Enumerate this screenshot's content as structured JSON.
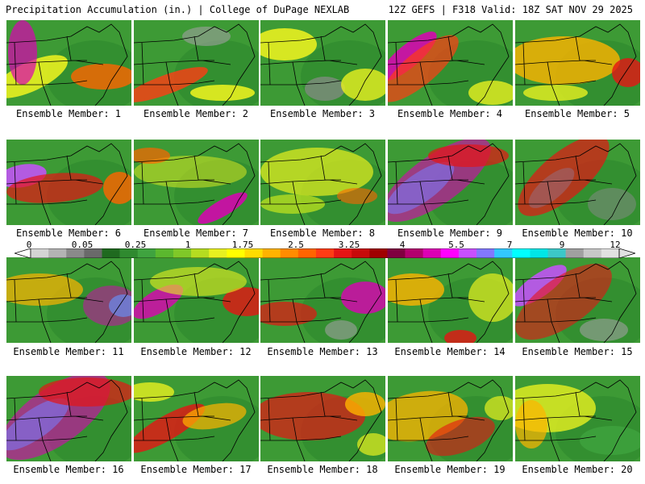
{
  "header": {
    "title": "Precipitation Accumulation (in.) | College of DuPage NEXLAB",
    "valid": "12Z GEFS | F318 Valid: 18Z SAT NOV 29 2025"
  },
  "colorbar": {
    "labels": [
      "0",
      "0.05",
      "0.25",
      "1",
      "1.75",
      "2.5",
      "3.25",
      "4",
      "5.5",
      "7",
      "9",
      "12"
    ],
    "colors": [
      "#d4d4d4",
      "#b3b3b3",
      "#8a8a8a",
      "#6a6a6a",
      "#1f6a1f",
      "#2f8a2f",
      "#3fa33f",
      "#5bb82e",
      "#80c828",
      "#b5dc20",
      "#e8f020",
      "#ffff00",
      "#ffdc00",
      "#ffb300",
      "#ff8c00",
      "#ff6400",
      "#ff3c14",
      "#e61414",
      "#c80a0a",
      "#a00000",
      "#800040",
      "#b4006e",
      "#dc00b4",
      "#ff00ff",
      "#c850ff",
      "#8278ff",
      "#32c8ff",
      "#00ffff",
      "#00e6e6",
      "#3cc8c8",
      "#a0a0a0",
      "#c8c8c8",
      "#e1e1e1"
    ]
  },
  "members": [
    {
      "label": "Ensemble Member: 1"
    },
    {
      "label": "Ensemble Member: 2"
    },
    {
      "label": "Ensemble Member: 3"
    },
    {
      "label": "Ensemble Member: 4"
    },
    {
      "label": "Ensemble Member: 5"
    },
    {
      "label": "Ensemble Member: 6"
    },
    {
      "label": "Ensemble Member: 7"
    },
    {
      "label": "Ensemble Member: 8"
    },
    {
      "label": "Ensemble Member: 9"
    },
    {
      "label": "Ensemble Member: 10"
    },
    {
      "label": "Ensemble Member: 11"
    },
    {
      "label": "Ensemble Member: 12"
    },
    {
      "label": "Ensemble Member: 13"
    },
    {
      "label": "Ensemble Member: 14"
    },
    {
      "label": "Ensemble Member: 15"
    },
    {
      "label": "Ensemble Member: 16"
    },
    {
      "label": "Ensemble Member: 17"
    },
    {
      "label": "Ensemble Member: 18"
    },
    {
      "label": "Ensemble Member: 19"
    },
    {
      "label": "Ensemble Member: 20"
    }
  ]
}
